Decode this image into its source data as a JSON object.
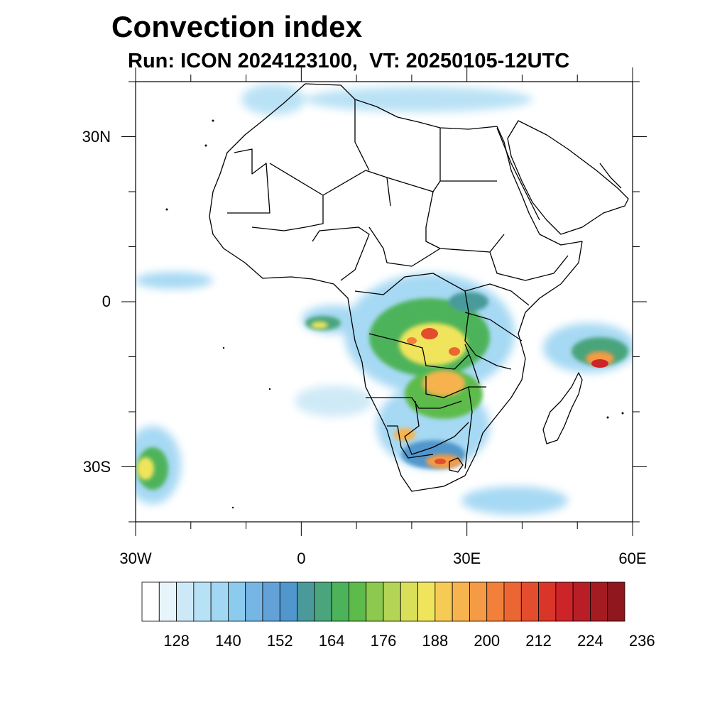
{
  "title": "Convection index",
  "subtitle": "Run: ICON 2024123100,  VT: 20250105-12UTC",
  "map": {
    "extent": {
      "lon_min": -30,
      "lon_max": 60,
      "lat_min": -40,
      "lat_max": 40
    },
    "lat_ticks": [
      {
        "lat": 30,
        "label": "30N"
      },
      {
        "lat": 0,
        "label": "0"
      },
      {
        "lat": -30,
        "label": "30S"
      }
    ],
    "lon_ticks": [
      {
        "lon": -30,
        "label": "30W"
      },
      {
        "lon": 0,
        "label": "0"
      },
      {
        "lon": 30,
        "label": "30E"
      },
      {
        "lon": 60,
        "label": "60E"
      }
    ]
  },
  "colorbar": {
    "colors": [
      "#ffffff",
      "#e8f4fb",
      "#cde9f7",
      "#b7e1f5",
      "#a2d7f3",
      "#8ccaee",
      "#76b6e4",
      "#62a2d8",
      "#5196cc",
      "#4a9a9b",
      "#4aa47c",
      "#4db35a",
      "#5dbb4b",
      "#8cc94e",
      "#b3d454",
      "#d9df59",
      "#f0e45c",
      "#f6cb55",
      "#f6b34e",
      "#f59b45",
      "#f2803b",
      "#ec6633",
      "#e34d2e",
      "#d93529",
      "#cc2428",
      "#b81e26",
      "#a51b22",
      "#8f171d"
    ],
    "labels": [
      "128",
      "140",
      "152",
      "164",
      "176",
      "188",
      "200",
      "212",
      "224",
      "236"
    ]
  }
}
